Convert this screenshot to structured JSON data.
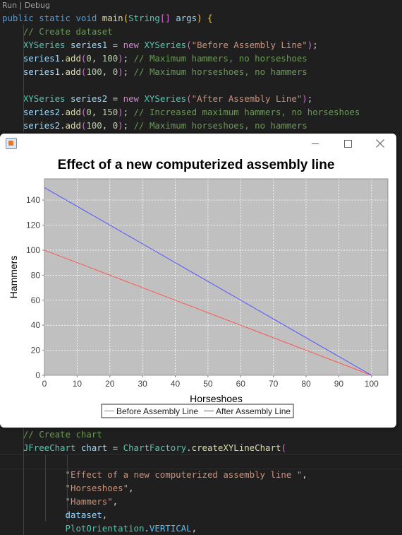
{
  "editor": {
    "codelens": {
      "run": "Run",
      "separator": "|",
      "debug": "Debug"
    },
    "lines_top": [
      [
        [
          "kw",
          "public "
        ],
        [
          "kw",
          "static "
        ],
        [
          "kw",
          "void "
        ],
        [
          "fn",
          "main"
        ],
        [
          "br1",
          "("
        ],
        [
          "ty",
          "String"
        ],
        [
          "br2",
          "[]"
        ],
        [
          "var",
          " args"
        ],
        [
          "br1",
          ")"
        ],
        [
          "pn",
          " "
        ],
        [
          "br1",
          "{"
        ]
      ],
      [
        [
          "pn",
          "    "
        ],
        [
          "cm",
          "// Create dataset"
        ]
      ],
      [
        [
          "pn",
          "    "
        ],
        [
          "ty",
          "XYSeries"
        ],
        [
          "var",
          " series1"
        ],
        [
          "pn",
          " = "
        ],
        [
          "kw2",
          "new "
        ],
        [
          "ty",
          "XYSeries"
        ],
        [
          "br2",
          "("
        ],
        [
          "str",
          "\"Before Assembly Line\""
        ],
        [
          "br2",
          ")"
        ],
        [
          "pn",
          ";"
        ]
      ],
      [
        [
          "pn",
          "    "
        ],
        [
          "var",
          "series1"
        ],
        [
          "pn",
          "."
        ],
        [
          "fn",
          "add"
        ],
        [
          "br2",
          "("
        ],
        [
          "num",
          "0"
        ],
        [
          "pn",
          ", "
        ],
        [
          "num",
          "100"
        ],
        [
          "br2",
          ")"
        ],
        [
          "pn",
          "; "
        ],
        [
          "cm",
          "// Maximum hammers, no horseshoes"
        ]
      ],
      [
        [
          "pn",
          "    "
        ],
        [
          "var",
          "series1"
        ],
        [
          "pn",
          "."
        ],
        [
          "fn",
          "add"
        ],
        [
          "br2",
          "("
        ],
        [
          "num",
          "100"
        ],
        [
          "pn",
          ", "
        ],
        [
          "num",
          "0"
        ],
        [
          "br2",
          ")"
        ],
        [
          "pn",
          "; "
        ],
        [
          "cm",
          "// Maximum horseshoes, no hammers"
        ]
      ],
      [
        [
          "pn",
          ""
        ]
      ],
      [
        [
          "pn",
          "    "
        ],
        [
          "ty",
          "XYSeries"
        ],
        [
          "var",
          " series2"
        ],
        [
          "pn",
          " = "
        ],
        [
          "kw2",
          "new "
        ],
        [
          "ty",
          "XYSeries"
        ],
        [
          "br2",
          "("
        ],
        [
          "str",
          "\"After Assembly Line\""
        ],
        [
          "br2",
          ")"
        ],
        [
          "pn",
          ";"
        ]
      ],
      [
        [
          "pn",
          "    "
        ],
        [
          "var",
          "series2"
        ],
        [
          "pn",
          "."
        ],
        [
          "fn",
          "add"
        ],
        [
          "br2",
          "("
        ],
        [
          "num",
          "0"
        ],
        [
          "pn",
          ", "
        ],
        [
          "num",
          "150"
        ],
        [
          "br2",
          ")"
        ],
        [
          "pn",
          "; "
        ],
        [
          "cm",
          "// Increased maximum hammers, no horseshoes"
        ]
      ],
      [
        [
          "pn",
          "    "
        ],
        [
          "var",
          "series2"
        ],
        [
          "pn",
          "."
        ],
        [
          "fn",
          "add"
        ],
        [
          "br2",
          "("
        ],
        [
          "num",
          "100"
        ],
        [
          "pn",
          ", "
        ],
        [
          "num",
          "0"
        ],
        [
          "br2",
          ")"
        ],
        [
          "pn",
          "; "
        ],
        [
          "cm",
          "// Maximum horseshoes, no hammers"
        ]
      ]
    ],
    "lines_bottom": [
      [
        [
          "pn",
          "    "
        ],
        [
          "cm",
          "// Create chart"
        ]
      ],
      [
        [
          "pn",
          "    "
        ],
        [
          "ty",
          "JFreeChart"
        ],
        [
          "var",
          " chart"
        ],
        [
          "pn",
          " = "
        ],
        [
          "ty",
          "ChartFactory"
        ],
        [
          "pn",
          "."
        ],
        [
          "fn",
          "createXYLineChart"
        ],
        [
          "br2",
          "("
        ]
      ],
      [
        [
          "pn",
          ""
        ]
      ],
      [
        [
          "pn",
          "            "
        ],
        [
          "str",
          "\"Effect of a new computerized assembly line \""
        ],
        [
          "pn",
          ","
        ]
      ],
      [
        [
          "pn",
          "            "
        ],
        [
          "str",
          "\"Horseshoes\""
        ],
        [
          "pn",
          ","
        ]
      ],
      [
        [
          "pn",
          "            "
        ],
        [
          "str",
          "\"Hammers\""
        ],
        [
          "pn",
          ","
        ]
      ],
      [
        [
          "pn",
          "            "
        ],
        [
          "var",
          "dataset"
        ],
        [
          "pn",
          ","
        ]
      ],
      [
        [
          "pn",
          "            "
        ],
        [
          "ty",
          "PlotOrientation"
        ],
        [
          "pn",
          "."
        ],
        [
          "cst",
          "VERTICAL"
        ],
        [
          "pn",
          ","
        ]
      ]
    ]
  },
  "window": {
    "min_label": "",
    "max_label": "",
    "close_label": ""
  },
  "chart_data": {
    "type": "line",
    "title": "Effect of a new computerized assembly line",
    "xlabel": "Horseshoes",
    "ylabel": "Hammers",
    "xlim": [
      0,
      105
    ],
    "ylim": [
      0,
      157
    ],
    "xticks": [
      0,
      10,
      20,
      30,
      40,
      50,
      60,
      70,
      80,
      90,
      100
    ],
    "yticks": [
      0,
      20,
      40,
      60,
      80,
      100,
      120,
      140
    ],
    "grid": true,
    "legend_position": "bottom",
    "series": [
      {
        "name": "Before Assembly Line",
        "color": "#ff5555",
        "x": [
          0,
          100
        ],
        "y": [
          100,
          0
        ]
      },
      {
        "name": "After Assembly Line",
        "color": "#5555ff",
        "x": [
          0,
          100
        ],
        "y": [
          150,
          0
        ]
      }
    ],
    "colors": {
      "plot_bg": "#c0c0c0",
      "gridline": "#ffffff"
    }
  }
}
